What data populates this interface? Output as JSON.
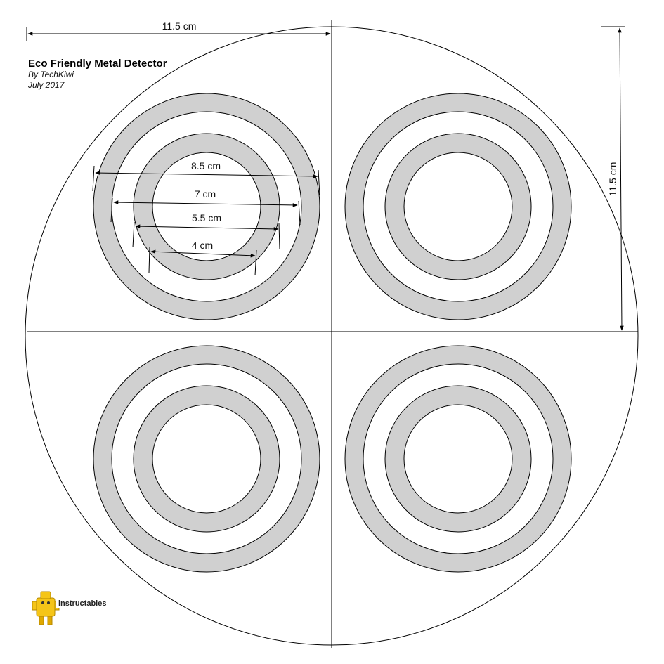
{
  "title": "Eco Friendly Metal Detector",
  "author": "By TechKiwi",
  "date": "July 2017",
  "dimension_labels": {
    "width": "11.5 cm",
    "height": "11.5 cm",
    "ring_outer": "8.5 cm",
    "ring_second": "7 cm",
    "ring_third": "5.5 cm",
    "ring_inner": "4 cm"
  },
  "logo_text": "instructables",
  "colors": {
    "ring_fill": "#d0d0d0",
    "line": "#000000",
    "logo_robot": "#f5c518"
  }
}
